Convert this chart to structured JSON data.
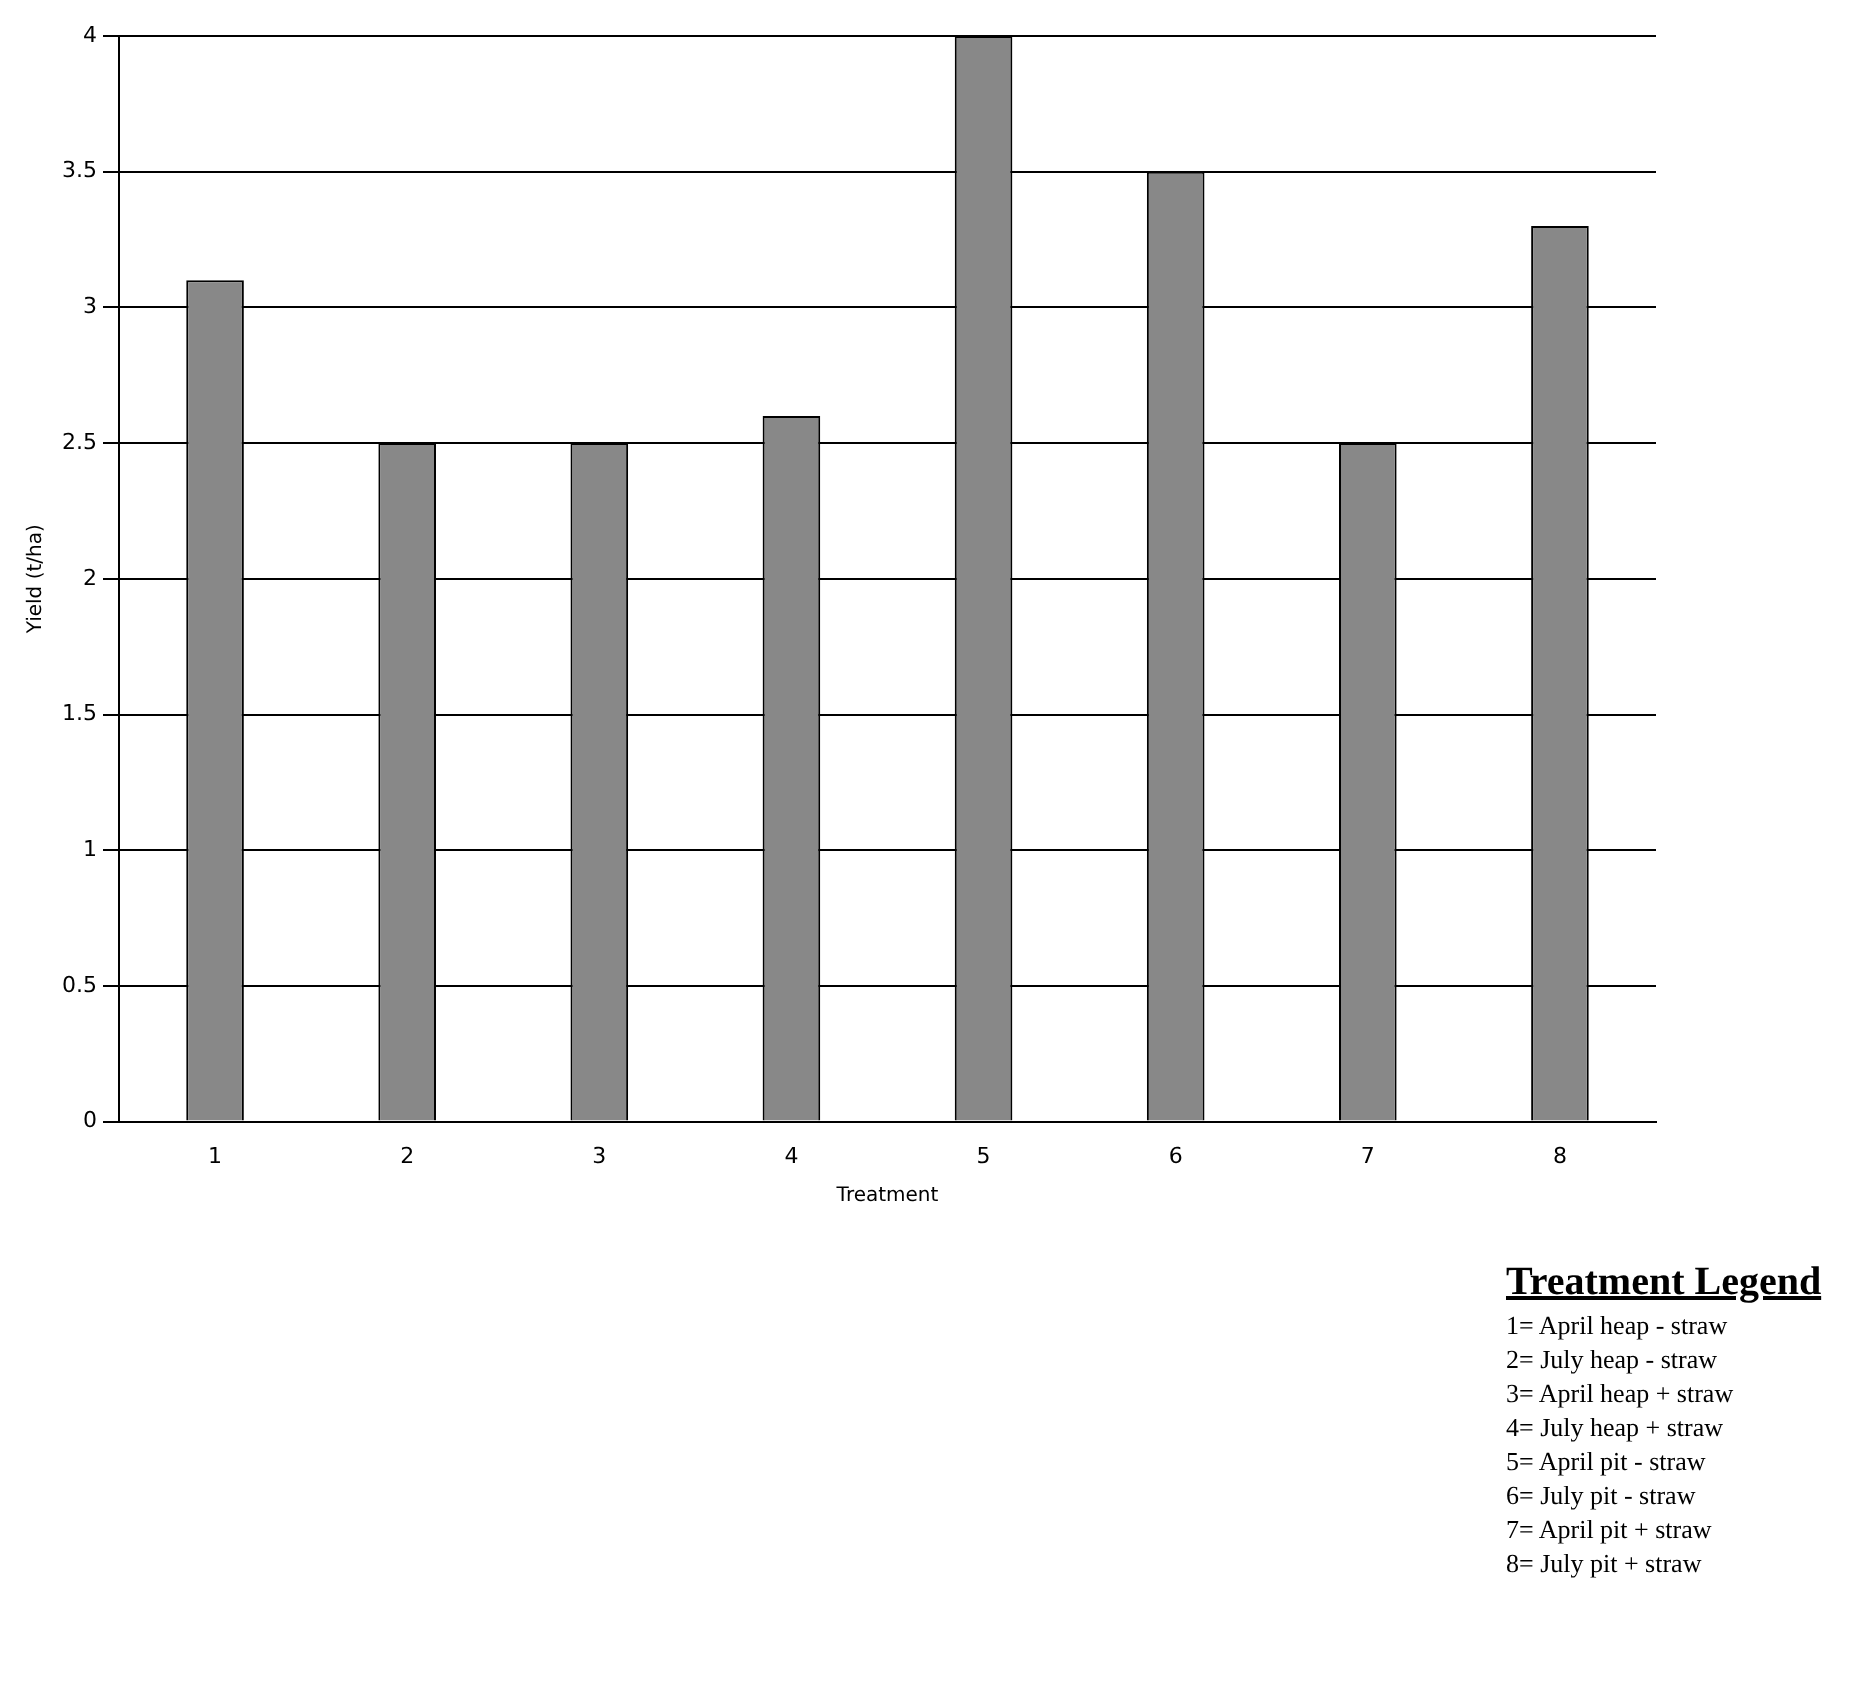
{
  "chart_data": {
    "type": "bar",
    "xlabel": "Treatment",
    "ylabel": "Yield (t/ha)",
    "categories": [
      "1",
      "2",
      "3",
      "4",
      "5",
      "6",
      "7",
      "8"
    ],
    "values": [
      3.1,
      2.5,
      2.5,
      2.6,
      4.0,
      3.5,
      2.5,
      3.3
    ],
    "color": "#888888",
    "ylim": [
      0,
      4
    ],
    "yticks": [
      0,
      0.5,
      1,
      1.5,
      2,
      2.5,
      3,
      3.5,
      4
    ],
    "grid": "y",
    "legend": false,
    "annotations": [
      "Treatment Legend",
      "1= April heap - straw",
      "2= July heap - straw",
      "3= April heap + straw",
      "4= July heap + straw",
      "5= April pit - straw",
      "6= July pit - straw",
      "7= April pit + straw",
      "8= July pit + straw"
    ]
  }
}
